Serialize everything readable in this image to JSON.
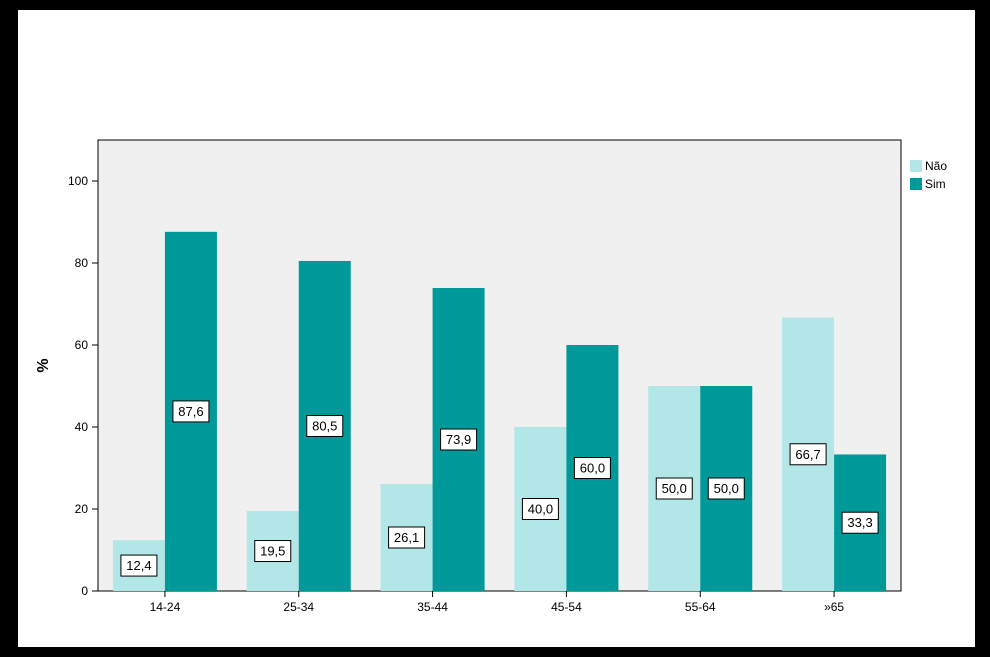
{
  "chart_data": {
    "type": "bar",
    "categories": [
      "14-24",
      "25-34",
      "35-44",
      "45-54",
      "55-64",
      "»65"
    ],
    "series": [
      {
        "name": "Não",
        "values": [
          12.4,
          19.5,
          26.1,
          40.0,
          50.0,
          66.7
        ],
        "labels": [
          "12,4",
          "19,5",
          "26,1",
          "40,0",
          "50,0",
          "66,7"
        ],
        "color": "#b3e6e6"
      },
      {
        "name": "Sim",
        "values": [
          87.6,
          80.5,
          73.9,
          60.0,
          50.0,
          33.3
        ],
        "labels": [
          "87,6",
          "80,5",
          "73,9",
          "60,0",
          "50,0",
          "33,3"
        ],
        "color": "#009999"
      }
    ],
    "title": "",
    "xlabel": "",
    "ylabel": "%",
    "ylim": [
      0,
      110
    ],
    "yticks": [
      "0",
      "20",
      "40",
      "60",
      "80",
      "100"
    ],
    "grid": false,
    "legend_position": "top-right",
    "plot_background": "#f0f0f0"
  }
}
